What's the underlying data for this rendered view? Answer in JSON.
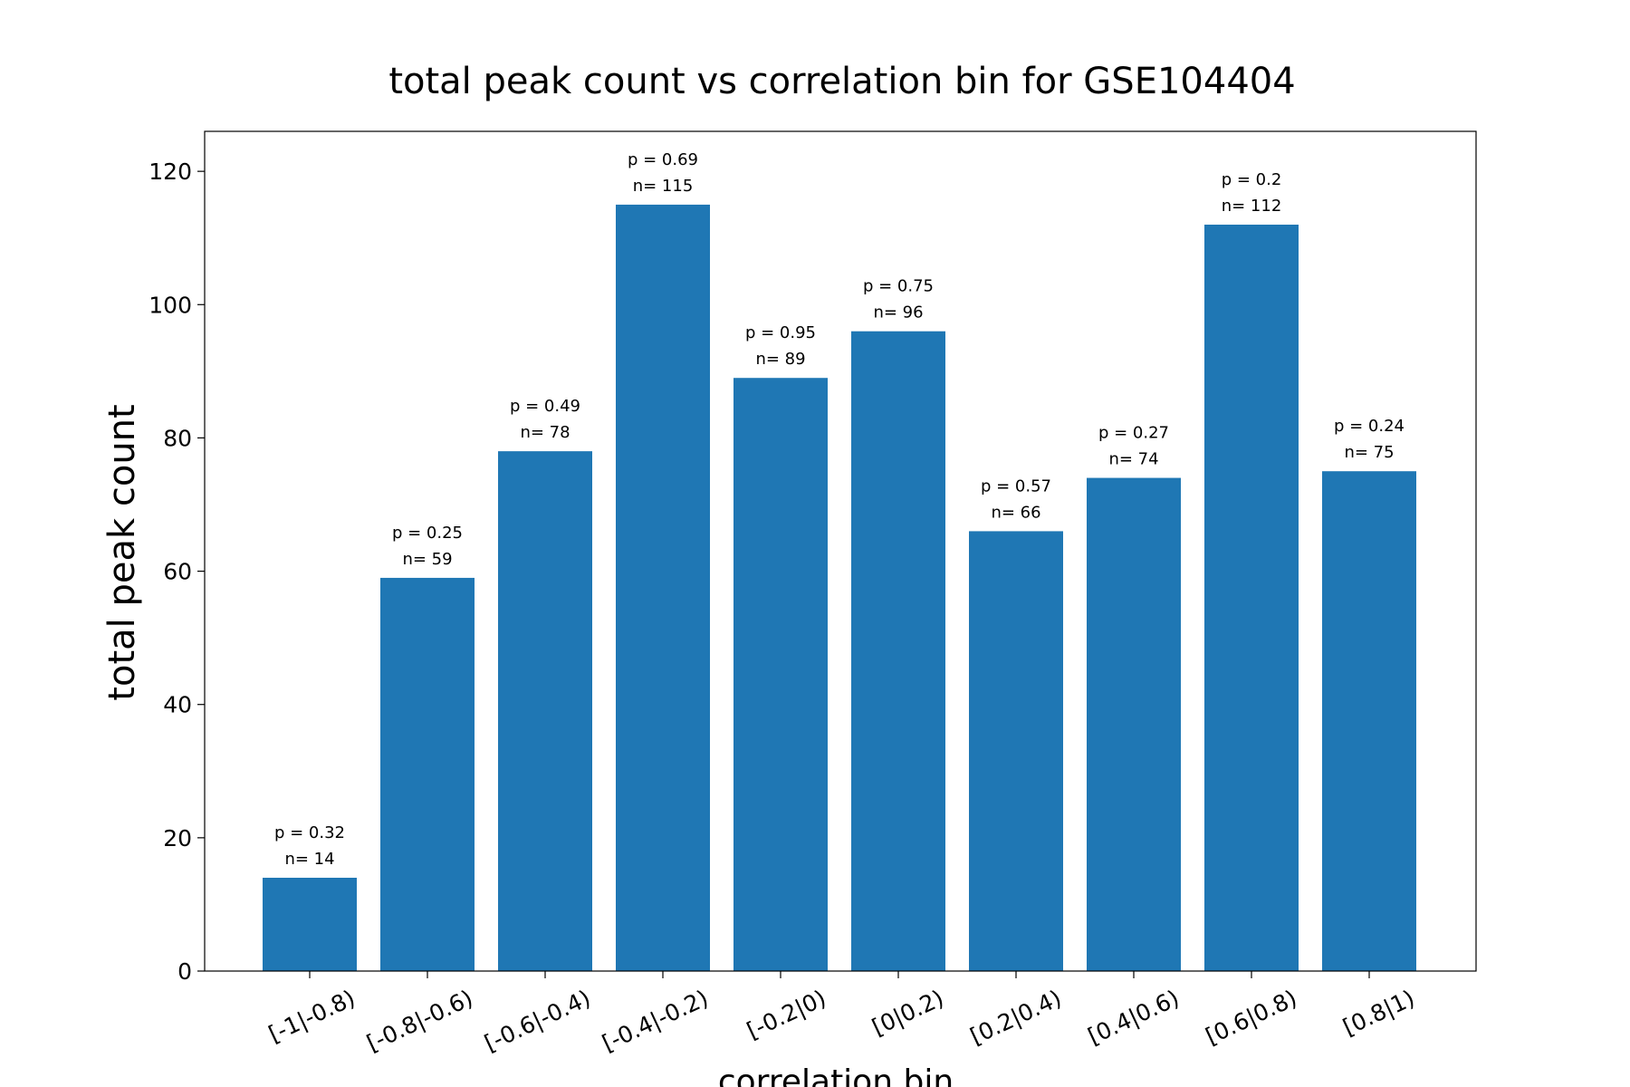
{
  "chart_data": {
    "type": "bar",
    "title": "total peak count vs correlation bin for GSE104404",
    "xlabel": "correlation bin",
    "ylabel": "total peak count",
    "ylim": [
      0,
      126
    ],
    "yticks": [
      0,
      20,
      40,
      60,
      80,
      100,
      120
    ],
    "categories": [
      "[-1|-0.8)",
      "[-0.8|-0.6)",
      "[-0.6|-0.4)",
      "[-0.4|-0.2)",
      "[-0.2|0)",
      "[0|0.2)",
      "[0.2|0.4)",
      "[0.4|0.6)",
      "[0.6|0.8)",
      "[0.8|1)"
    ],
    "values": [
      14,
      59,
      78,
      115,
      89,
      96,
      66,
      74,
      112,
      75
    ],
    "p_labels": [
      "p = 0.32",
      "p = 0.25",
      "p = 0.49",
      "p = 0.69",
      "p = 0.95",
      "p = 0.75",
      "p = 0.57",
      "p = 0.27",
      "p = 0.2",
      "p = 0.24"
    ],
    "n_labels": [
      "n= 14",
      "n= 59",
      "n= 78",
      "n= 115",
      "n= 89",
      "n= 96",
      "n= 66",
      "n= 74",
      "n= 112",
      "n= 75"
    ],
    "bar_color": "#1f77b4",
    "grid": false,
    "legend": "none"
  }
}
